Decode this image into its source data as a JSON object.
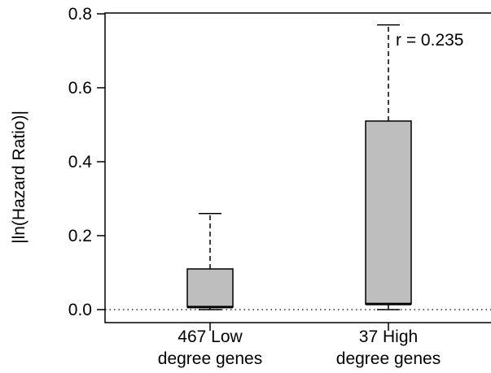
{
  "chart_data": {
    "type": "boxplot",
    "title": "",
    "ylabel": "|ln(Hazard Ratio)|",
    "xlabel": "",
    "ylim": [
      0,
      0.8
    ],
    "yticks": [
      "0.0",
      "0.2",
      "0.4",
      "0.6",
      "0.8"
    ],
    "categories": [
      {
        "line1": "467 Low",
        "line2": "degree genes"
      },
      {
        "line1": "37 High",
        "line2": "degree genes"
      }
    ],
    "boxes": [
      {
        "whisker_low": 0.0,
        "q1": 0.007,
        "median": 0.007,
        "q3": 0.11,
        "whisker_high": 0.26
      },
      {
        "whisker_low": 0.0,
        "q1": 0.015,
        "median": 0.015,
        "q3": 0.51,
        "whisker_high": 0.77
      }
    ],
    "reference_line": 0.0,
    "annotation": "r = 0.235",
    "box_fill": "#bebebe",
    "grid": false
  }
}
